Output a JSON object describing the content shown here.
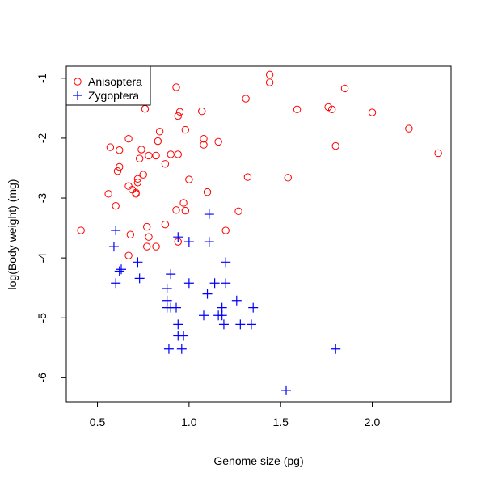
{
  "chart_data": {
    "type": "scatter",
    "title": "",
    "xlabel": "Genome size (pg)",
    "ylabel": "log(Body weight) (mg)",
    "xlim": [
      0.33,
      2.43
    ],
    "ylim": [
      -6.4,
      -0.8
    ],
    "xticks": [
      0.5,
      1.0,
      1.5,
      2.0
    ],
    "xtick_labels": [
      "0.5",
      "1.0",
      "1.5",
      "2.0"
    ],
    "yticks": [
      -6,
      -5,
      -4,
      -3,
      -2,
      -1
    ],
    "ytick_labels": [
      "-6",
      "-5",
      "-4",
      "-3",
      "-2",
      "-1"
    ],
    "grid": false,
    "legend_position": "top-left",
    "series": [
      {
        "name": "Anisoptera",
        "marker": "circle",
        "color": "#ff0000",
        "points": [
          [
            0.41,
            -3.54
          ],
          [
            0.56,
            -2.93
          ],
          [
            0.57,
            -2.15
          ],
          [
            0.6,
            -3.13
          ],
          [
            0.61,
            -2.55
          ],
          [
            0.62,
            -2.48
          ],
          [
            0.62,
            -2.2
          ],
          [
            0.67,
            -2.01
          ],
          [
            0.67,
            -2.8
          ],
          [
            0.67,
            -3.96
          ],
          [
            0.68,
            -3.61
          ],
          [
            0.69,
            -2.86
          ],
          [
            0.71,
            -2.93
          ],
          [
            0.71,
            -2.91
          ],
          [
            0.72,
            -2.68
          ],
          [
            0.72,
            -2.74
          ],
          [
            0.73,
            -2.34
          ],
          [
            0.74,
            -2.19
          ],
          [
            0.75,
            -2.61
          ],
          [
            0.76,
            -1.51
          ],
          [
            0.77,
            -3.48
          ],
          [
            0.77,
            -3.81
          ],
          [
            0.78,
            -2.29
          ],
          [
            0.78,
            -3.65
          ],
          [
            0.82,
            -2.29
          ],
          [
            0.82,
            -3.81
          ],
          [
            0.83,
            -2.05
          ],
          [
            0.84,
            -1.89
          ],
          [
            0.87,
            -2.43
          ],
          [
            0.87,
            -3.44
          ],
          [
            0.9,
            -2.27
          ],
          [
            0.93,
            -3.2
          ],
          [
            0.93,
            -1.15
          ],
          [
            0.94,
            -1.63
          ],
          [
            0.94,
            -2.27
          ],
          [
            0.94,
            -3.73
          ],
          [
            0.95,
            -1.56
          ],
          [
            0.97,
            -3.08
          ],
          [
            0.98,
            -1.86
          ],
          [
            0.98,
            -3.21
          ],
          [
            1.0,
            -2.69
          ],
          [
            1.07,
            -1.55
          ],
          [
            1.08,
            -2.01
          ],
          [
            1.08,
            -2.11
          ],
          [
            1.1,
            -2.9
          ],
          [
            1.16,
            -2.06
          ],
          [
            1.2,
            -3.54
          ],
          [
            1.27,
            -3.22
          ],
          [
            1.31,
            -1.34
          ],
          [
            1.32,
            -2.65
          ],
          [
            1.44,
            -0.94
          ],
          [
            1.44,
            -1.07
          ],
          [
            1.54,
            -2.66
          ],
          [
            1.59,
            -1.52
          ],
          [
            1.76,
            -1.48
          ],
          [
            1.78,
            -1.52
          ],
          [
            1.8,
            -2.13
          ],
          [
            1.85,
            -1.17
          ],
          [
            2.0,
            -1.57
          ],
          [
            2.2,
            -1.84
          ],
          [
            2.36,
            -2.25
          ]
        ]
      },
      {
        "name": "Zygoptera",
        "marker": "plus",
        "color": "#0000ff",
        "points": [
          [
            0.6,
            -3.54
          ],
          [
            0.59,
            -3.81
          ],
          [
            0.6,
            -4.42
          ],
          [
            0.62,
            -4.22
          ],
          [
            0.63,
            -4.19
          ],
          [
            0.72,
            -4.07
          ],
          [
            0.73,
            -4.34
          ],
          [
            0.88,
            -4.51
          ],
          [
            0.88,
            -4.71
          ],
          [
            0.88,
            -4.83
          ],
          [
            0.89,
            -5.52
          ],
          [
            0.9,
            -4.27
          ],
          [
            0.9,
            -4.83
          ],
          [
            0.93,
            -4.83
          ],
          [
            0.94,
            -3.65
          ],
          [
            0.94,
            -5.11
          ],
          [
            0.94,
            -5.3
          ],
          [
            0.96,
            -5.52
          ],
          [
            0.97,
            -5.3
          ],
          [
            1.0,
            -3.73
          ],
          [
            1.0,
            -4.42
          ],
          [
            1.08,
            -4.96
          ],
          [
            1.1,
            -4.6
          ],
          [
            1.11,
            -3.27
          ],
          [
            1.11,
            -3.73
          ],
          [
            1.14,
            -4.42
          ],
          [
            1.16,
            -4.96
          ],
          [
            1.18,
            -4.83
          ],
          [
            1.18,
            -4.96
          ],
          [
            1.19,
            -5.11
          ],
          [
            1.2,
            -4.07
          ],
          [
            1.2,
            -4.42
          ],
          [
            1.26,
            -4.71
          ],
          [
            1.28,
            -5.11
          ],
          [
            1.34,
            -5.11
          ],
          [
            1.35,
            -4.83
          ],
          [
            1.53,
            -6.21
          ],
          [
            1.8,
            -5.52
          ]
        ]
      }
    ]
  }
}
